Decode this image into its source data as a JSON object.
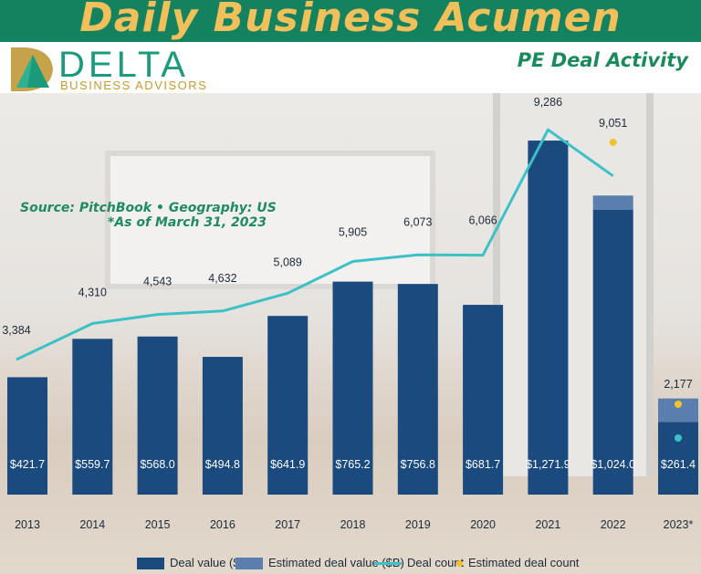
{
  "header": {
    "title": "Daily Business Acumen",
    "subtitle": "PE Deal Activity"
  },
  "logo": {
    "name": "DELTA",
    "tagline": "BUSINESS ADVISORS"
  },
  "notes": {
    "source": "Source: PitchBook • Geography: US",
    "as_of": "*As of March 31, 2023"
  },
  "colors": {
    "deal_value": "#1a4a7e",
    "estimated_value": "#5a7fae",
    "deal_count": "#3cc1c7",
    "estimated_count": "#f2c22e",
    "header_band": "#14815f",
    "header_text": "#f1c05b"
  },
  "chart_data": {
    "type": "bar",
    "categories": [
      "2013",
      "2014",
      "2015",
      "2016",
      "2017",
      "2018",
      "2019",
      "2020",
      "2021",
      "2022",
      "2023*"
    ],
    "series": [
      {
        "name": "Deal value ($B)",
        "type": "bar",
        "values": [
          421.7,
          559.7,
          568.0,
          494.8,
          641.9,
          765.2,
          756.8,
          681.7,
          1271.9,
          1024.0,
          261.4
        ],
        "labels": [
          "$421.7",
          "$559.7",
          "$568.0",
          "$494.8",
          "$641.9",
          "$765.2",
          "$756.8",
          "$681.7",
          "$1,271.9",
          "$1,024.0",
          "$261.4"
        ]
      },
      {
        "name": "Estimated deal value ($B)",
        "type": "bar-stacked",
        "values": [
          0,
          0,
          0,
          0,
          0,
          0,
          0,
          0,
          0,
          70,
          125
        ]
      },
      {
        "name": "Deal count",
        "type": "line",
        "values": [
          3384,
          4310,
          4543,
          4632,
          5089,
          5905,
          6073,
          6066,
          9286,
          8100,
          null
        ],
        "labels": [
          "3,384",
          "4,310",
          "4,543",
          "4,632",
          "5,089",
          "5,905",
          "6,073",
          "6,066",
          "9,286",
          null,
          null
        ]
      },
      {
        "name": "Estimated deal count",
        "type": "point",
        "values": [
          null,
          null,
          null,
          null,
          null,
          null,
          null,
          null,
          null,
          9051,
          2177
        ],
        "labels": [
          null,
          null,
          null,
          null,
          null,
          null,
          null,
          null,
          null,
          "9,051",
          "2,177"
        ]
      }
    ],
    "legend": {
      "position": "bottom",
      "items": [
        "Deal value ($B)",
        "Estimated deal value ($B)",
        "Deal count",
        "Estimated deal count"
      ]
    },
    "grid": false
  }
}
